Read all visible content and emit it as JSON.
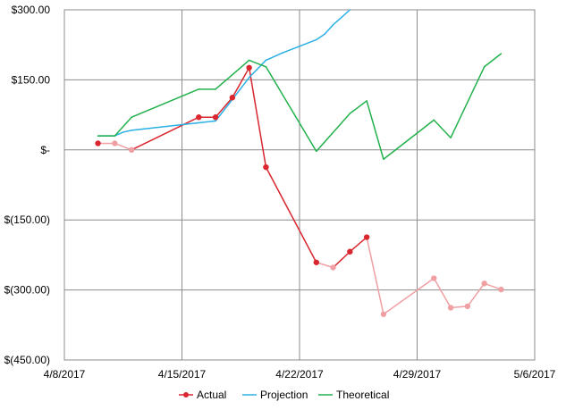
{
  "chart_data": {
    "type": "line",
    "title": "",
    "xlabel": "",
    "ylabel": "",
    "x_tick_labels": [
      "4/8/2017",
      "4/15/2017",
      "4/22/2017",
      "4/29/2017",
      "5/6/2017"
    ],
    "x_ticks": [
      "2017-04-08",
      "2017-04-15",
      "2017-04-22",
      "2017-04-29",
      "2017-05-06"
    ],
    "xlim": [
      "2017-04-08",
      "2017-05-06"
    ],
    "ylim": [
      -450,
      300
    ],
    "y_ticks": [
      300,
      150,
      0,
      -150,
      -300,
      -450
    ],
    "y_tick_labels": [
      "$300.00",
      "$150.00",
      "$-",
      "$(150.00)",
      "$(300.00)",
      "$(450.00)"
    ],
    "grid": true,
    "legend_position": "bottom",
    "series": [
      {
        "name": "Actual",
        "color": "#d9262f",
        "faded_color": "#f0a0a3",
        "marker": "circle",
        "points": [
          {
            "x": "2017-04-10",
            "y": 14,
            "faded": false
          },
          {
            "x": "2017-04-11",
            "y": 14,
            "faded": true
          },
          {
            "x": "2017-04-12",
            "y": 0,
            "faded": true
          },
          {
            "x": "2017-04-16",
            "y": 70,
            "faded": false
          },
          {
            "x": "2017-04-17",
            "y": 70,
            "faded": false
          },
          {
            "x": "2017-04-18",
            "y": 112,
            "faded": false
          },
          {
            "x": "2017-04-19",
            "y": 176,
            "faded": false
          },
          {
            "x": "2017-04-20",
            "y": -37,
            "faded": false
          },
          {
            "x": "2017-04-23",
            "y": -241,
            "faded": false
          },
          {
            "x": "2017-04-24",
            "y": -252,
            "faded": true
          },
          {
            "x": "2017-04-25",
            "y": -218,
            "faded": false
          },
          {
            "x": "2017-04-26",
            "y": -187,
            "faded": false
          },
          {
            "x": "2017-04-27",
            "y": -352,
            "faded": true
          },
          {
            "x": "2017-04-30",
            "y": -275,
            "faded": true
          },
          {
            "x": "2017-05-01",
            "y": -338,
            "faded": true
          },
          {
            "x": "2017-05-02",
            "y": -335,
            "faded": true
          },
          {
            "x": "2017-05-03",
            "y": -286,
            "faded": true
          },
          {
            "x": "2017-05-04",
            "y": -299,
            "faded": true
          }
        ]
      },
      {
        "name": "Projection",
        "color": "#2ab0e4",
        "points": [
          {
            "x": "2017-04-10",
            "y": 30
          },
          {
            "x": "2017-04-11",
            "y": 30
          },
          {
            "x": "2017-04-11.5",
            "y": 38
          },
          {
            "x": "2017-04-12",
            "y": 42
          },
          {
            "x": "2017-04-17",
            "y": 62
          },
          {
            "x": "2017-04-18",
            "y": 108
          },
          {
            "x": "2017-04-19",
            "y": 155
          },
          {
            "x": "2017-04-20",
            "y": 192
          },
          {
            "x": "2017-04-21",
            "y": 208
          },
          {
            "x": "2017-04-22",
            "y": 222
          },
          {
            "x": "2017-04-23",
            "y": 236
          },
          {
            "x": "2017-04-23.5",
            "y": 248
          },
          {
            "x": "2017-04-24",
            "y": 268
          },
          {
            "x": "2017-04-25",
            "y": 300
          }
        ]
      },
      {
        "name": "Theoretical",
        "color": "#22b14c",
        "points": [
          {
            "x": "2017-04-10",
            "y": 30
          },
          {
            "x": "2017-04-11",
            "y": 30
          },
          {
            "x": "2017-04-12",
            "y": 70
          },
          {
            "x": "2017-04-16",
            "y": 130
          },
          {
            "x": "2017-04-17",
            "y": 130
          },
          {
            "x": "2017-04-19",
            "y": 192
          },
          {
            "x": "2017-04-20",
            "y": 178
          },
          {
            "x": "2017-04-23",
            "y": -3
          },
          {
            "x": "2017-04-25",
            "y": 78
          },
          {
            "x": "2017-04-26",
            "y": 105
          },
          {
            "x": "2017-04-27",
            "y": -20
          },
          {
            "x": "2017-04-30",
            "y": 64
          },
          {
            "x": "2017-05-01",
            "y": 26
          },
          {
            "x": "2017-05-03",
            "y": 178
          },
          {
            "x": "2017-05-04",
            "y": 206
          }
        ]
      }
    ]
  }
}
